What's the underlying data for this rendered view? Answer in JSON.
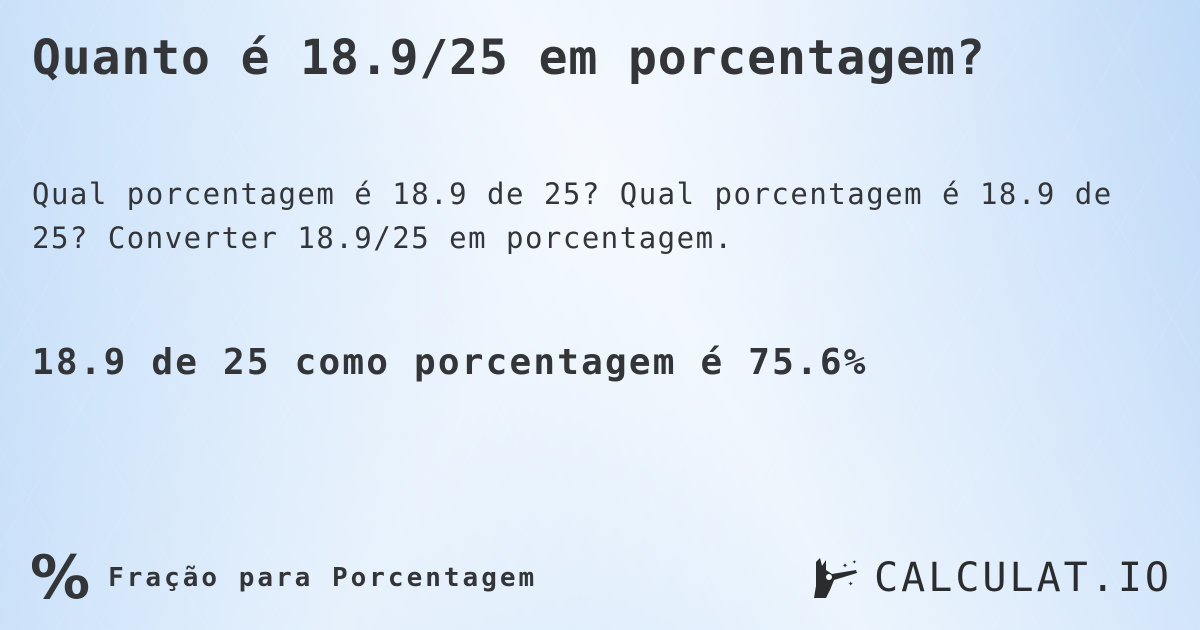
{
  "title": "Quanto é 18.9/25 em porcentagem?",
  "description": "Qual porcentagem é 18.9 de 25? Qual porcentagem é 18.9 de 25? Converter 18.9/25 em porcentagem.",
  "result": "18.9 de 25 como porcentagem é 75.6%",
  "footer": {
    "icon": "percent-icon",
    "icon_glyph": "%",
    "label": "Fração para Porcentagem"
  },
  "logo": {
    "text": "CALCULAT.IO",
    "icon": "magic-hand-icon"
  }
}
